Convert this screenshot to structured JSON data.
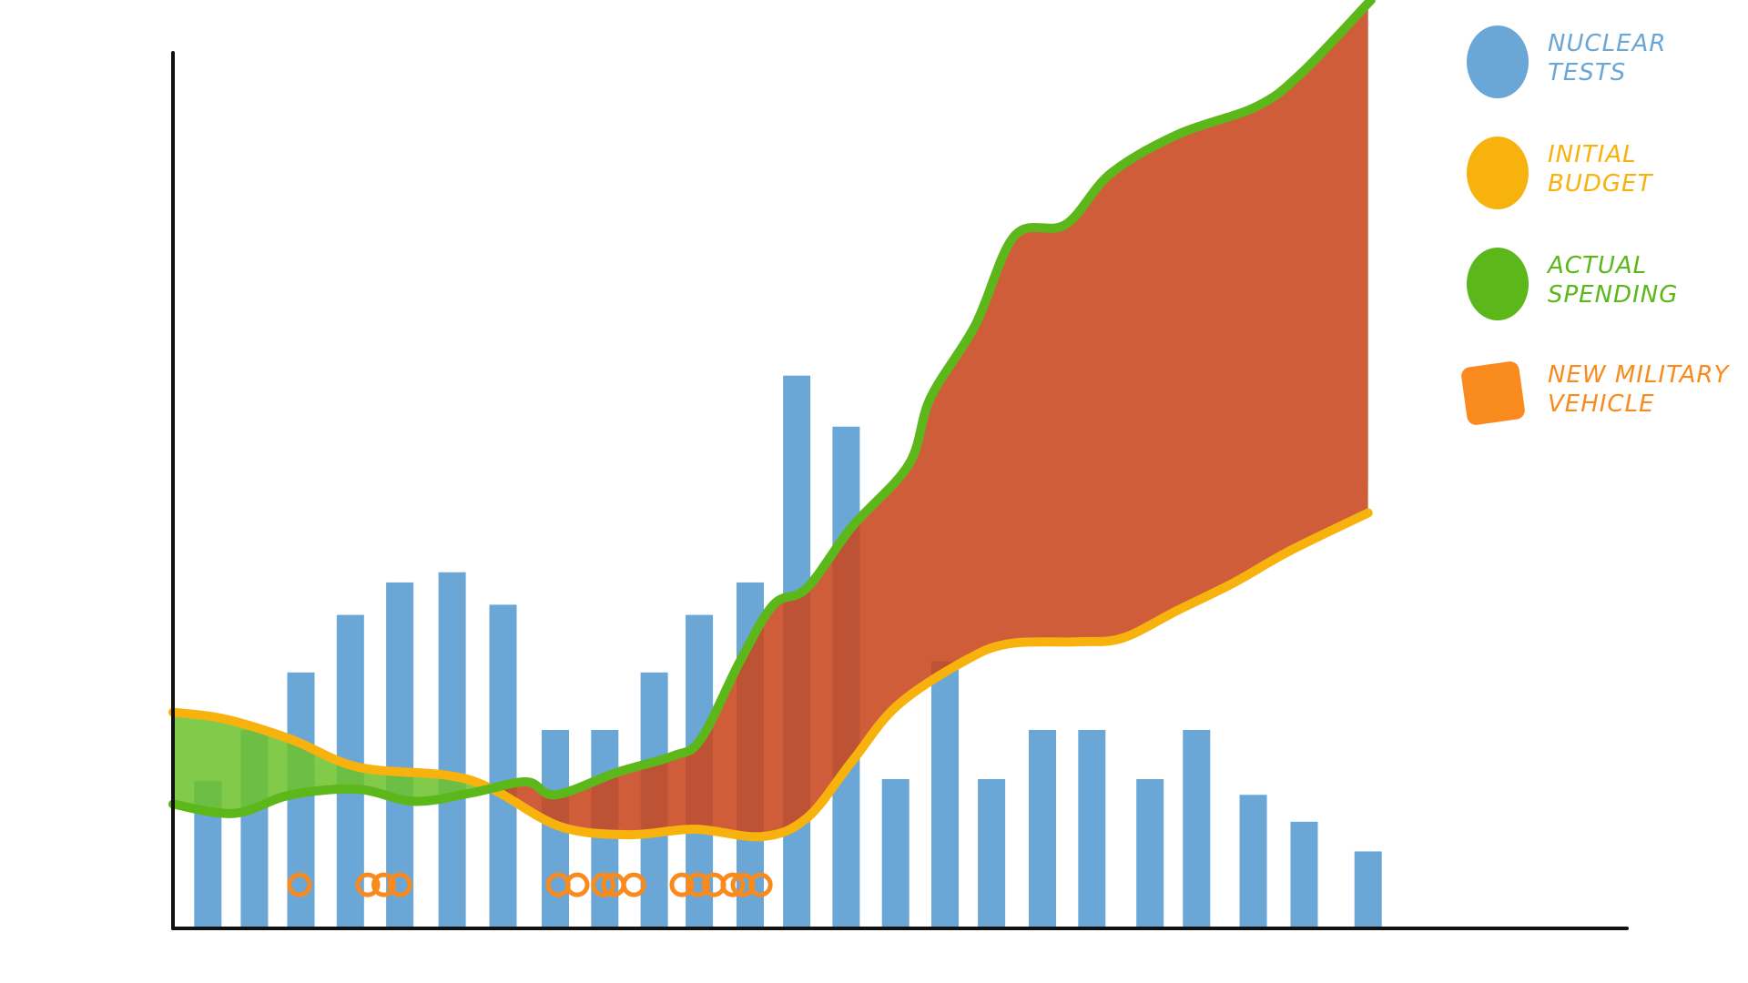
{
  "chart_data": {
    "type": "combo",
    "xlim": [
      0,
      100
    ],
    "ylim": [
      0,
      100
    ],
    "series": [
      {
        "name": "NUCLEAR TESTS",
        "type": "bar",
        "color": "#6aa6d6",
        "x": [
          2.4,
          5.6,
          8.8,
          12.2,
          15.6,
          19.2,
          22.7,
          26.3,
          29.7,
          33.1,
          36.2,
          39.7,
          42.9,
          46.3,
          49.7,
          53.1,
          56.3,
          59.8,
          63.2,
          67.2,
          70.4,
          74.3,
          77.8,
          82.2
        ],
        "values": [
          15.8,
          21.3,
          27.5,
          33.7,
          37.2,
          38.3,
          34.8,
          21.3,
          21.3,
          27.5,
          33.7,
          37.2,
          59.5,
          54,
          16,
          28.7,
          16,
          21.3,
          21.3,
          16,
          21.3,
          14.3,
          11.4,
          8.2
        ]
      },
      {
        "name": "INITIAL BUDGET",
        "type": "line",
        "color": "#f7b20e",
        "x": [
          0,
          3.5,
          8.1,
          12.7,
          18.9,
          22.0,
          26.6,
          31.3,
          35.9,
          40.5,
          43.6,
          46.7,
          49.8,
          54.4,
          57.5,
          62.2,
          65.3,
          69.1,
          73.0,
          76.8,
          82.2
        ],
        "values": [
          23.2,
          22.5,
          20.3,
          17.3,
          16.4,
          14.9,
          10.9,
          10.0,
          10.6,
          9.8,
          11.8,
          17.9,
          23.9,
          28.7,
          30.6,
          30.8,
          31.2,
          34.2,
          37.2,
          40.6,
          44.7
        ]
      },
      {
        "name": "ACTUAL SPENDING",
        "type": "line",
        "color": "#5cb81a",
        "x": [
          0,
          4.2,
          8.1,
          12.7,
          16.6,
          20.5,
          24.3,
          26.3,
          30.5,
          34.4,
          36.3,
          39.0,
          41.3,
          43.6,
          46.7,
          50.6,
          52.1,
          55.2,
          57.9,
          61.4,
          64.5,
          69.1,
          74.5,
          77.6,
          82.4
        ],
        "values": [
          13.3,
          12.3,
          14.3,
          14.9,
          13.6,
          14.5,
          15.7,
          14.3,
          16.7,
          18.5,
          20.3,
          28.7,
          34.8,
          36.6,
          43.2,
          49.9,
          57.1,
          65.0,
          74.6,
          75.8,
          81.3,
          85.5,
          88.5,
          92.1,
          100
        ]
      },
      {
        "name": "NEW MILITARY VEHICLE",
        "type": "scatter",
        "color": "#f98a1e",
        "x": [
          8.7,
          13.4,
          14.5,
          15.6,
          26.5,
          27.8,
          29.6,
          30.3,
          31.7,
          35.0,
          36.1,
          37.2,
          38.5,
          39.2,
          40.4
        ],
        "values": [
          4.6,
          4.6,
          4.6,
          4.6,
          4.6,
          4.6,
          4.6,
          4.6,
          4.6,
          4.6,
          4.6,
          4.6,
          4.6,
          4.6,
          4.6
        ]
      }
    ]
  }
}
